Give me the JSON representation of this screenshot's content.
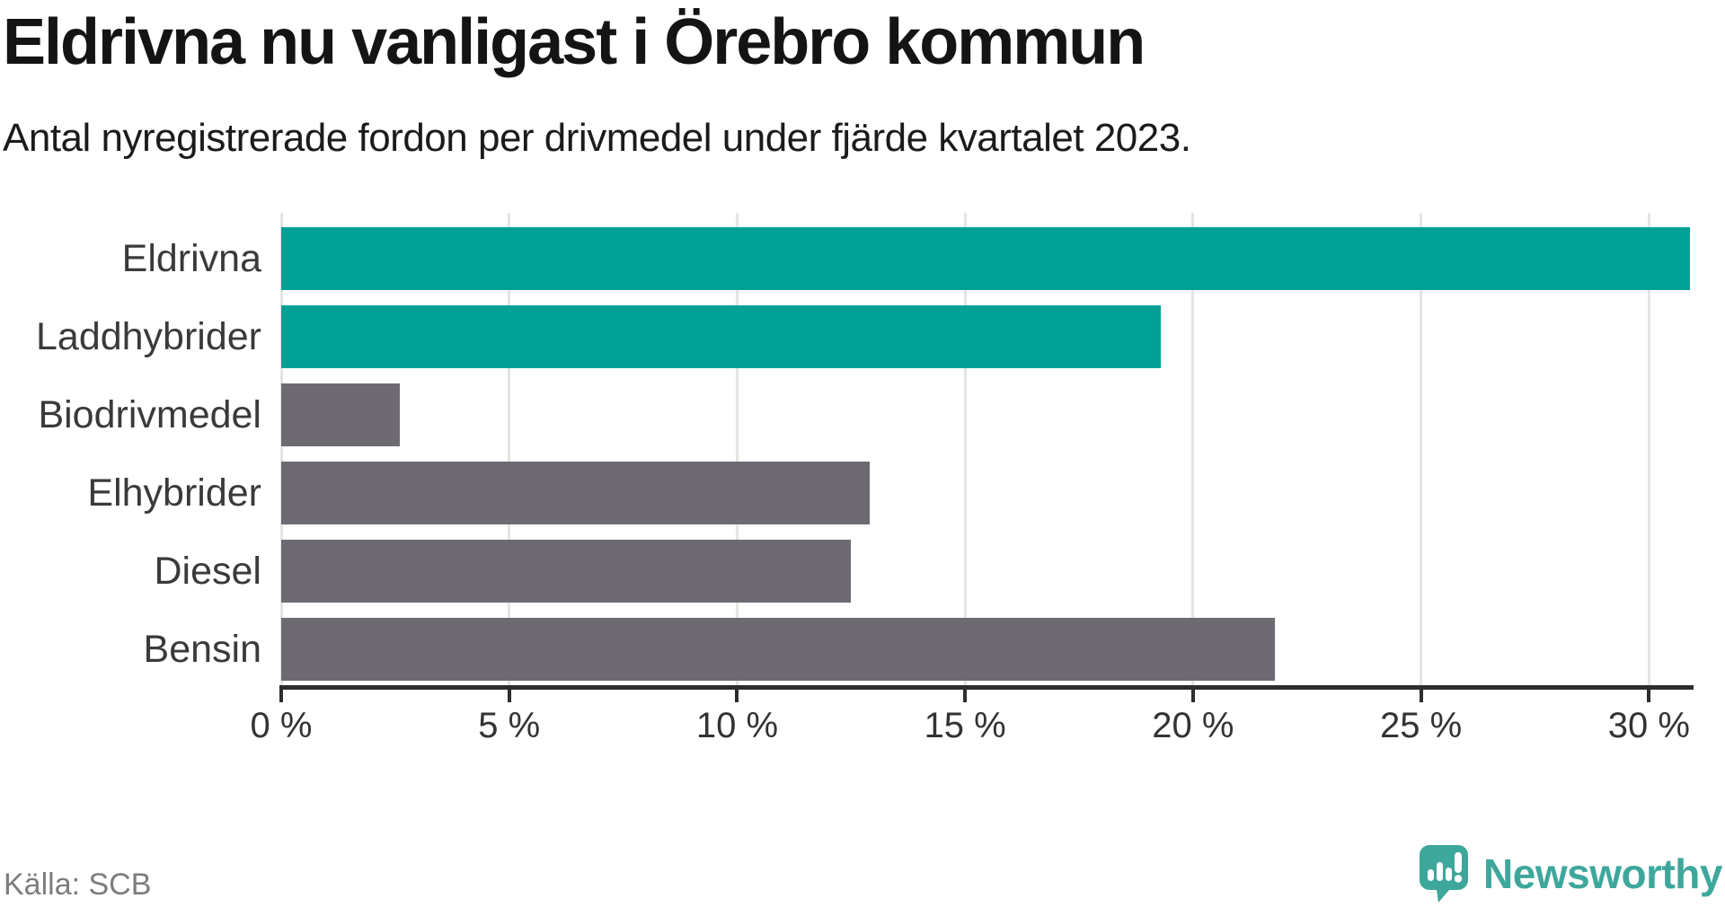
{
  "header": {
    "title": "Eldrivna nu vanligast i Örebro kommun",
    "subtitle": "Antal nyregistrerade fordon per drivmedel under fjärde kvartalet 2023."
  },
  "chart_data": {
    "type": "bar",
    "orientation": "horizontal",
    "title": "Eldrivna nu vanligast i Örebro kommun",
    "subtitle": "Antal nyregistrerade fordon per drivmedel under fjärde kvartalet 2023.",
    "categories": [
      "Eldrivna",
      "Laddhybrider",
      "Biodrivmedel",
      "Elhybrider",
      "Diesel",
      "Bensin"
    ],
    "values": [
      30.9,
      19.3,
      2.6,
      12.9,
      12.5,
      21.8
    ],
    "unit": "%",
    "xlabel": "",
    "ylabel": "",
    "xlim": [
      0,
      30.9
    ],
    "xticks": [
      0,
      5,
      10,
      15,
      20,
      25,
      30
    ],
    "xtick_labels": [
      "0 %",
      "5 %",
      "10 %",
      "15 %",
      "20 %",
      "25 %",
      "30 %"
    ],
    "grid": true,
    "legend": false,
    "bar_colors": [
      "#00a096",
      "#00a096",
      "#6d6a72",
      "#6d6a72",
      "#6d6a72",
      "#6d6a72"
    ],
    "highlight_color": "#00a096",
    "default_color": "#6d6a72"
  },
  "footer": {
    "source": "Källa: SCB",
    "brand": "Newsworthy"
  },
  "colors": {
    "background": "#ffffff",
    "title_text": "#141414",
    "label_text": "#3a3a3a",
    "gridline": "#e4e4e4",
    "axis": "#2d2d2d",
    "source_text": "#7d7d7d",
    "logo_teal": "#3ea79c"
  }
}
